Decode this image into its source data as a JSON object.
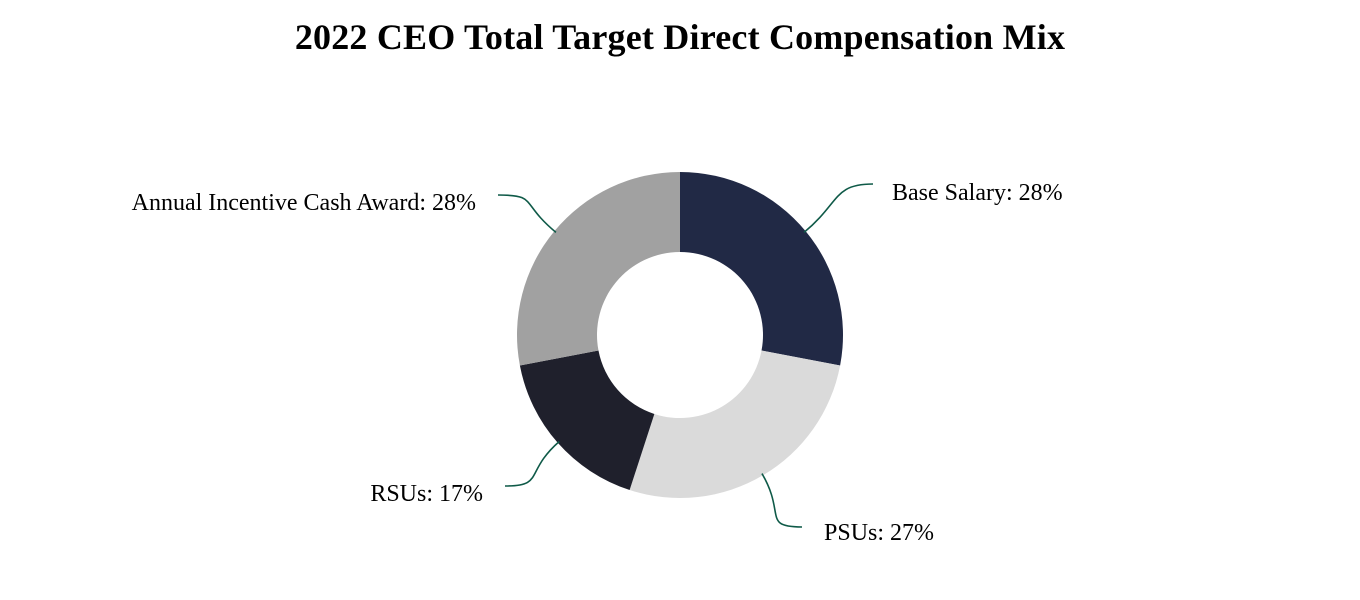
{
  "chart_data": {
    "type": "pie",
    "style": "donut",
    "title": "2022 CEO Total Target Direct Compensation Mix",
    "slices": [
      {
        "label": "Base Salary",
        "value": 28,
        "display": "Base Salary: 28%",
        "color": "#212945"
      },
      {
        "label": "PSUs",
        "value": 27,
        "display": "PSUs: 27%",
        "color": "#dadada"
      },
      {
        "label": "RSUs",
        "value": 17,
        "display": "RSUs: 17%",
        "color": "#1f202c"
      },
      {
        "label": "Annual Incentive Cash Award",
        "value": 28,
        "display": "Annual Incentive Cash Award: 28%",
        "color": "#a1a1a1"
      }
    ],
    "leader_line_color": "#0f5a48",
    "legend": "none"
  }
}
